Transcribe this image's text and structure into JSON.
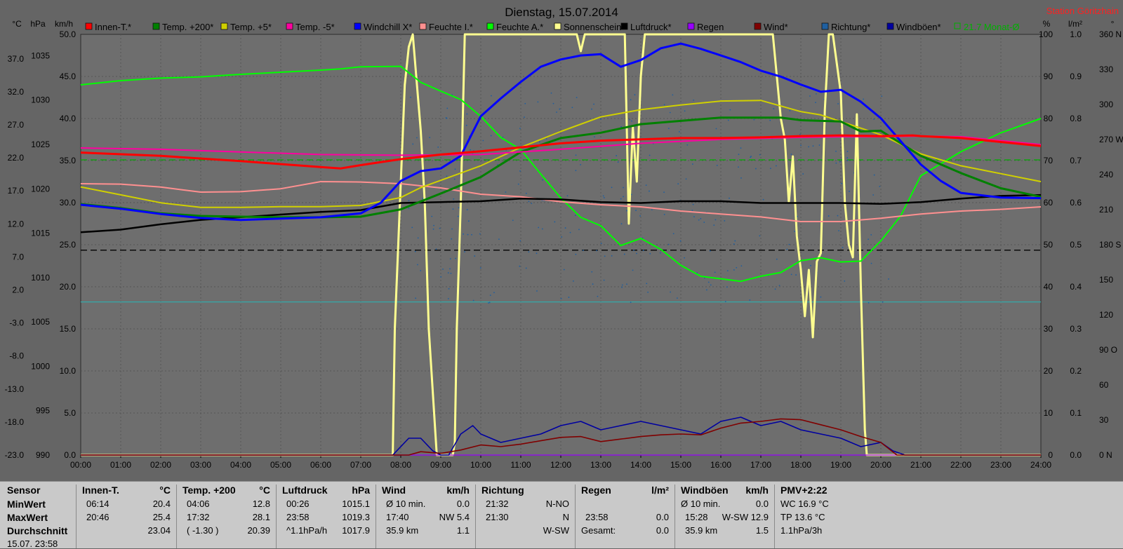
{
  "title": "Dienstag, 15.07.2014",
  "station": "Station Göritzhain",
  "units_left": [
    "°C",
    "hPa",
    "km/h"
  ],
  "units_right": [
    "%",
    "l/m²",
    "°"
  ],
  "legend": [
    {
      "label": "Innen-T.*",
      "color": "#ff0000"
    },
    {
      "label": "Temp. +200*",
      "color": "#008000"
    },
    {
      "label": "Temp. +5*",
      "color": "#d0d000"
    },
    {
      "label": "Temp. -5*",
      "color": "#ff00a0"
    },
    {
      "label": "Windchill X*",
      "color": "#0000ff"
    },
    {
      "label": "Feuchte I.*",
      "color": "#ff9090"
    },
    {
      "label": "Feuchte A.*",
      "color": "#00ff00"
    },
    {
      "label": "Sonnenschein",
      "color": "#ffff90"
    },
    {
      "label": "Luftdruck*",
      "color": "#000000"
    },
    {
      "label": "Regen",
      "color": "#9900ff"
    },
    {
      "label": "Wind*",
      "color": "#800000"
    },
    {
      "label": "Richtung*",
      "color": "#1f5fa0"
    },
    {
      "label": "Windböen*",
      "color": "#0000a0"
    },
    {
      "label": "21.7 Monat-Ø",
      "color": "#00b000"
    }
  ],
  "chart_data": {
    "type": "line",
    "title": "Dienstag, 15.07.2014",
    "x_ticks": [
      "00:00",
      "01:00",
      "02:00",
      "03:00",
      "04:00",
      "05:00",
      "06:00",
      "07:00",
      "08:00",
      "09:00",
      "10:00",
      "11:00",
      "12:00",
      "13:00",
      "14:00",
      "15:00",
      "16:00",
      "17:00",
      "18:00",
      "19:00",
      "20:00",
      "21:00",
      "22:00",
      "23:00",
      "24:00"
    ],
    "xlim": [
      0,
      24
    ],
    "axes": {
      "temp_c": {
        "ticks": [
          "37.0",
          "32.0",
          "27.0",
          "22.0",
          "17.0",
          "12.0",
          "7.0",
          "2.0",
          "-3.0",
          "-8.0",
          "-13.0",
          "-18.0",
          "-23.0"
        ],
        "range": [
          -23,
          40.7
        ]
      },
      "pressure_hpa": {
        "ticks": [
          "1035",
          "1030",
          "1025",
          "1020",
          "1015",
          "1010",
          "1005",
          "1000",
          "995",
          "990"
        ],
        "range": [
          990,
          1037.4
        ]
      },
      "wind_kmh": {
        "ticks": [
          "50.0",
          "45.0",
          "40.0",
          "35.0",
          "30.0",
          "25.0",
          "20.0",
          "15.0",
          "10.0",
          "5.0",
          "0.0"
        ],
        "range": [
          0,
          50
        ]
      },
      "humidity_pct": {
        "ticks": [
          "100",
          "90",
          "80",
          "70",
          "60",
          "50",
          "40",
          "30",
          "20",
          "10",
          "0"
        ],
        "range": [
          0,
          100
        ]
      },
      "rain_lm2": {
        "ticks": [
          "1.0",
          "0.9",
          "0.8",
          "0.7",
          "0.6",
          "0.5",
          "0.4",
          "0.3",
          "0.2",
          "0.1",
          "0.0"
        ],
        "range": [
          0,
          1
        ]
      },
      "direction_deg": {
        "ticks": [
          "360 N",
          "330",
          "300",
          "270 W",
          "240",
          "210",
          "180 S",
          "150",
          "120",
          "90 O",
          "60",
          "30",
          "0 N"
        ],
        "range": [
          0,
          360
        ]
      }
    },
    "series": [
      {
        "name": "Innen-T.*",
        "color": "#ff0000",
        "axis": "temp_c",
        "x": [
          0,
          2,
          4,
          6,
          6.5,
          7,
          8,
          9,
          10,
          11,
          12,
          13,
          14,
          15,
          16,
          17,
          18,
          19,
          20,
          20.8,
          21,
          22,
          23,
          24
        ],
        "y": [
          22.8,
          22.3,
          21.5,
          20.6,
          20.4,
          20.9,
          21.8,
          22.5,
          23.0,
          23.6,
          24.2,
          24.6,
          24.8,
          25.0,
          25.0,
          25.1,
          25.3,
          25.4,
          25.3,
          25.4,
          25.3,
          25.0,
          24.4,
          23.8
        ]
      },
      {
        "name": "Temp. +200*",
        "color": "#008000",
        "axis": "temp_c",
        "x": [
          0,
          1,
          2,
          3,
          4,
          5,
          6,
          7,
          8,
          8.5,
          9,
          10,
          11,
          12,
          13,
          14,
          15,
          16,
          17,
          17.5,
          18,
          19,
          19.5,
          20,
          21,
          22,
          23,
          24
        ],
        "y": [
          15.0,
          14.4,
          13.6,
          13.2,
          13.1,
          13.0,
          13.0,
          13.1,
          14.2,
          15.4,
          16.6,
          19.1,
          22.9,
          25.0,
          25.8,
          27.1,
          27.6,
          28.1,
          28.1,
          28.1,
          27.7,
          27.5,
          26.0,
          26.1,
          22.3,
          19.7,
          17.4,
          16.1
        ]
      },
      {
        "name": "Temp. +5*",
        "color": "#d0d000",
        "axis": "temp_c",
        "x": [
          0,
          1,
          2,
          3,
          4,
          5,
          6,
          7,
          8,
          8.5,
          9,
          10,
          11,
          12,
          13,
          14,
          15,
          16,
          17,
          18,
          18.5,
          19,
          20,
          21,
          22,
          23,
          24
        ],
        "y": [
          17.6,
          16.4,
          15.2,
          14.5,
          14.5,
          14.6,
          14.6,
          14.8,
          16.0,
          17.5,
          18.6,
          20.8,
          23.6,
          26.0,
          28.2,
          29.3,
          30.0,
          30.6,
          30.7,
          29.0,
          28.5,
          27.5,
          25.5,
          22.6,
          20.8,
          19.6,
          18.4
        ]
      },
      {
        "name": "Temp. -5*",
        "color": "#ff00a0",
        "axis": "temp_c",
        "x": [
          0,
          2,
          4,
          6,
          8,
          10,
          12,
          14,
          16,
          18,
          19,
          20,
          21,
          22,
          23,
          24
        ],
        "y": [
          23.5,
          23.3,
          22.9,
          22.5,
          22.4,
          22.5,
          23.3,
          24.2,
          24.8,
          25.1,
          25.2,
          25.2,
          25.3,
          25.2,
          24.6,
          24.0
        ]
      },
      {
        "name": "Windchill X*",
        "color": "#0000ff",
        "axis": "temp_c",
        "x": [
          0,
          1,
          2,
          3,
          4,
          5,
          6,
          7,
          7.5,
          8,
          8.5,
          9,
          9.5,
          10,
          10.5,
          11,
          11.5,
          12,
          12.5,
          13,
          13.5,
          14,
          14.5,
          15,
          15.5,
          16,
          16.5,
          17,
          17.5,
          18,
          18.5,
          19,
          19.5,
          20,
          20.5,
          21,
          21.5,
          22,
          23,
          24
        ],
        "y": [
          14.9,
          14.3,
          13.5,
          12.9,
          12.6,
          12.8,
          13.0,
          13.6,
          15.2,
          18.5,
          20.0,
          20.4,
          22.3,
          28.3,
          31.0,
          33.5,
          35.8,
          36.9,
          37.5,
          37.7,
          35.8,
          36.8,
          38.6,
          39.3,
          38.5,
          37.5,
          36.5,
          35.2,
          34.3,
          33.1,
          32.0,
          32.3,
          30.5,
          28.0,
          24.5,
          21.0,
          18.5,
          16.7,
          16.0,
          15.9
        ]
      },
      {
        "name": "Feuchte I.*",
        "color": "#ff9090",
        "axis": "humidity_pct",
        "x": [
          0,
          1,
          2,
          3,
          4,
          5,
          6,
          7,
          8,
          9,
          10,
          11,
          12,
          13,
          14,
          15,
          16,
          17,
          18,
          19,
          20,
          21,
          22,
          23,
          24
        ],
        "y": [
          64.5,
          64.4,
          63.7,
          62.5,
          62.6,
          63.3,
          65.0,
          64.9,
          64.5,
          63.5,
          62.0,
          61.4,
          60.2,
          59.5,
          59.0,
          58.0,
          57.3,
          56.6,
          55.5,
          55.5,
          56.3,
          57.3,
          58.0,
          58.4,
          59.0
        ]
      },
      {
        "name": "Feuchte A.*",
        "color": "#00ff00",
        "axis": "humidity_pct",
        "x": [
          0,
          1,
          2,
          3,
          4,
          5,
          6,
          6.5,
          7,
          8,
          8.5,
          9,
          9.5,
          10,
          10.5,
          11,
          11.5,
          12,
          12.5,
          13,
          13.5,
          14,
          14.5,
          15,
          15.5,
          16,
          16.5,
          17,
          17.5,
          18,
          18.5,
          19,
          19.5,
          20,
          20.5,
          21,
          22,
          23,
          24
        ],
        "y": [
          88.0,
          89.0,
          89.6,
          89.9,
          90.5,
          91.0,
          91.5,
          91.8,
          92.3,
          92.4,
          88.6,
          86.5,
          84.5,
          80.5,
          75.5,
          72.6,
          66.8,
          61.1,
          56.5,
          54.5,
          49.8,
          51.5,
          48.9,
          45.1,
          42.5,
          41.9,
          41.3,
          42.5,
          43.4,
          46.2,
          46.9,
          45.9,
          46.1,
          50.9,
          56.9,
          66.4,
          72.1,
          76.6,
          80.0
        ]
      },
      {
        "name": "Sonnenschein",
        "color": "#ffff90",
        "axis": "humidity_pct",
        "x": [
          0,
          7.8,
          7.85,
          8.1,
          8.2,
          8.3,
          8.5,
          8.6,
          8.7,
          8.9,
          9.0,
          9.3,
          9.35,
          9.4,
          9.5,
          9.6,
          10,
          12,
          12.4,
          12.5,
          12.6,
          13,
          13.6,
          13.7,
          13.8,
          13.9,
          14.0,
          14.1,
          14.2,
          14.4,
          17.3,
          17.5,
          17.6,
          17.7,
          17.8,
          17.9,
          18.0,
          18.1,
          18.2,
          18.3,
          18.4,
          18.5,
          18.6,
          18.7,
          18.8,
          19.0,
          19.1,
          19.2,
          19.3,
          19.4,
          19.5,
          19.6,
          19.65,
          24
        ],
        "y": [
          0,
          0,
          30,
          88,
          97,
          100,
          77,
          60,
          30,
          0,
          0,
          0,
          3,
          30,
          60,
          100,
          100,
          100,
          100,
          96,
          100,
          100,
          100,
          55,
          78,
          65,
          90,
          100,
          100,
          100,
          100,
          80,
          75,
          60,
          71,
          52,
          44,
          33,
          44,
          28,
          46,
          48,
          82,
          100,
          100,
          86,
          60,
          50,
          47,
          81,
          40,
          6,
          0,
          0
        ]
      },
      {
        "name": "Luftdruck*",
        "color": "#000000",
        "axis": "pressure_hpa",
        "x": [
          0,
          1,
          2,
          3,
          4,
          5,
          6,
          7,
          8,
          9,
          10,
          11,
          12,
          13,
          14,
          15,
          16,
          17,
          18,
          19,
          20,
          21,
          22,
          23,
          24
        ],
        "y": [
          1015.1,
          1015.4,
          1016.0,
          1016.5,
          1016.8,
          1017.1,
          1017.4,
          1017.6,
          1018.4,
          1018.5,
          1018.6,
          1018.9,
          1018.8,
          1018.5,
          1018.4,
          1018.6,
          1018.6,
          1018.4,
          1018.4,
          1018.4,
          1018.3,
          1018.5,
          1018.9,
          1019.2,
          1019.3
        ]
      },
      {
        "name": "Windböen*",
        "color": "#0000a0",
        "axis": "wind_kmh",
        "x": [
          0,
          7.5,
          7.8,
          8.2,
          8.5,
          8.8,
          9.0,
          9.2,
          9.5,
          9.8,
          10,
          10.5,
          11,
          11.5,
          12,
          12.5,
          13,
          13.5,
          14,
          14.5,
          15,
          15.5,
          16,
          16.5,
          17,
          17.5,
          18,
          18.5,
          19,
          19.5,
          20,
          20.3,
          20.6,
          24
        ],
        "y": [
          0,
          0,
          0,
          2.0,
          2.0,
          0.5,
          0,
          0,
          2.5,
          3.5,
          2.5,
          1.5,
          2.0,
          2.5,
          3.5,
          4.0,
          3.0,
          3.5,
          4.0,
          3.5,
          3.0,
          2.5,
          4.0,
          4.5,
          3.5,
          4.0,
          3.0,
          2.5,
          2.0,
          1.0,
          1.5,
          0.5,
          0,
          0
        ]
      },
      {
        "name": "Wind*",
        "color": "#800000",
        "axis": "wind_kmh",
        "x": [
          0,
          8.2,
          8.5,
          9.0,
          9.5,
          10,
          10.5,
          11,
          11.5,
          12,
          12.5,
          13,
          13.5,
          14,
          14.5,
          15,
          15.5,
          16,
          16.5,
          17,
          17.5,
          18,
          18.5,
          19,
          19.5,
          20,
          20.4,
          24
        ],
        "y": [
          0,
          0,
          0.4,
          0.2,
          0.6,
          1.2,
          1.0,
          1.3,
          1.7,
          2.1,
          2.2,
          1.6,
          1.9,
          2.2,
          2.4,
          2.5,
          2.4,
          3.2,
          3.8,
          4.0,
          4.3,
          4.2,
          3.6,
          3.0,
          2.2,
          1.5,
          0,
          0
        ]
      },
      {
        "name": "Regen",
        "color": "#9900ff",
        "axis": "rain_lm2",
        "x": [
          0,
          24
        ],
        "y": [
          0,
          0
        ]
      }
    ],
    "reference_lines": [
      {
        "axis": "temp_c",
        "value": 21.7,
        "color": "#00b000",
        "style": "dashed"
      },
      {
        "axis": "humidity_pct",
        "value": 48.7,
        "color": "#000000",
        "style": "dashed"
      },
      {
        "axis": "wind_kmh",
        "value": 18.2,
        "color": "#33aaaa",
        "style": "solid"
      }
    ],
    "direction_scatter": {
      "color": "#1f5fa0",
      "x_range": [
        8.2,
        20.3
      ]
    },
    "grid": true
  },
  "stats": {
    "date_cut": "15.07. 23:58",
    "panels": [
      {
        "key": "sensor",
        "title": "Sensor",
        "rows": [
          {
            "label": "MinWert"
          },
          {
            "label": "MaxWert"
          },
          {
            "label": "Durchschnitt"
          }
        ]
      },
      {
        "key": "innen",
        "title": "Innen-T.",
        "unit": "°C",
        "rows": [
          {
            "time": "06:14",
            "value": "20.4"
          },
          {
            "time": "20:46",
            "value": "25.4"
          },
          {
            "time": "",
            "value": "23.04"
          }
        ]
      },
      {
        "key": "temp200",
        "title": "Temp. +200",
        "unit": "°C",
        "rows": [
          {
            "time": "04:06",
            "value": "12.8"
          },
          {
            "time": "17:32",
            "value": "28.1"
          },
          {
            "time": "( -1.30 )",
            "value": "20.39"
          }
        ]
      },
      {
        "key": "luftdruck",
        "title": "Luftdruck",
        "unit": "hPa",
        "rows": [
          {
            "time": "00:26",
            "value": "1015.1"
          },
          {
            "time": "23:58",
            "value": "1019.3"
          },
          {
            "time": "^1.1hPa/h",
            "value": "1017.9"
          }
        ]
      },
      {
        "key": "wind",
        "title": "Wind",
        "unit": "km/h",
        "rows": [
          {
            "time": "Ø 10 min.",
            "value": "0.0"
          },
          {
            "time": "17:40",
            "value": "NW 5.4"
          },
          {
            "time": "35.9 km",
            "value": "1.1"
          }
        ]
      },
      {
        "key": "richtung",
        "title": "Richtung",
        "unit": "",
        "rows": [
          {
            "time": "21:32",
            "value": "N-NO"
          },
          {
            "time": "21:30",
            "value": "N"
          },
          {
            "time": "",
            "value": "W-SW"
          }
        ]
      },
      {
        "key": "regen",
        "title": "Regen",
        "unit": "l/m²",
        "rows": [
          {
            "time": "",
            "value": ""
          },
          {
            "time": "23:58",
            "value": "0.0"
          },
          {
            "time": "Gesamt:",
            "value": "0.0"
          }
        ]
      },
      {
        "key": "windboeen",
        "title": "Windböen",
        "unit": "km/h",
        "rows": [
          {
            "time": "Ø 10 min.",
            "value": "0.0"
          },
          {
            "time": "15:28",
            "value": "W-SW 12.9"
          },
          {
            "time": "35.9 km",
            "value": "1.5"
          }
        ]
      },
      {
        "key": "pmv",
        "title": "PMV+2:22",
        "unit": "",
        "rows": [
          {
            "time": "WC 16.9 °C",
            "value": ""
          },
          {
            "time": "TP 13.6 °C",
            "value": ""
          },
          {
            "time": "1.1hPa/3h",
            "value": ""
          }
        ]
      }
    ]
  }
}
